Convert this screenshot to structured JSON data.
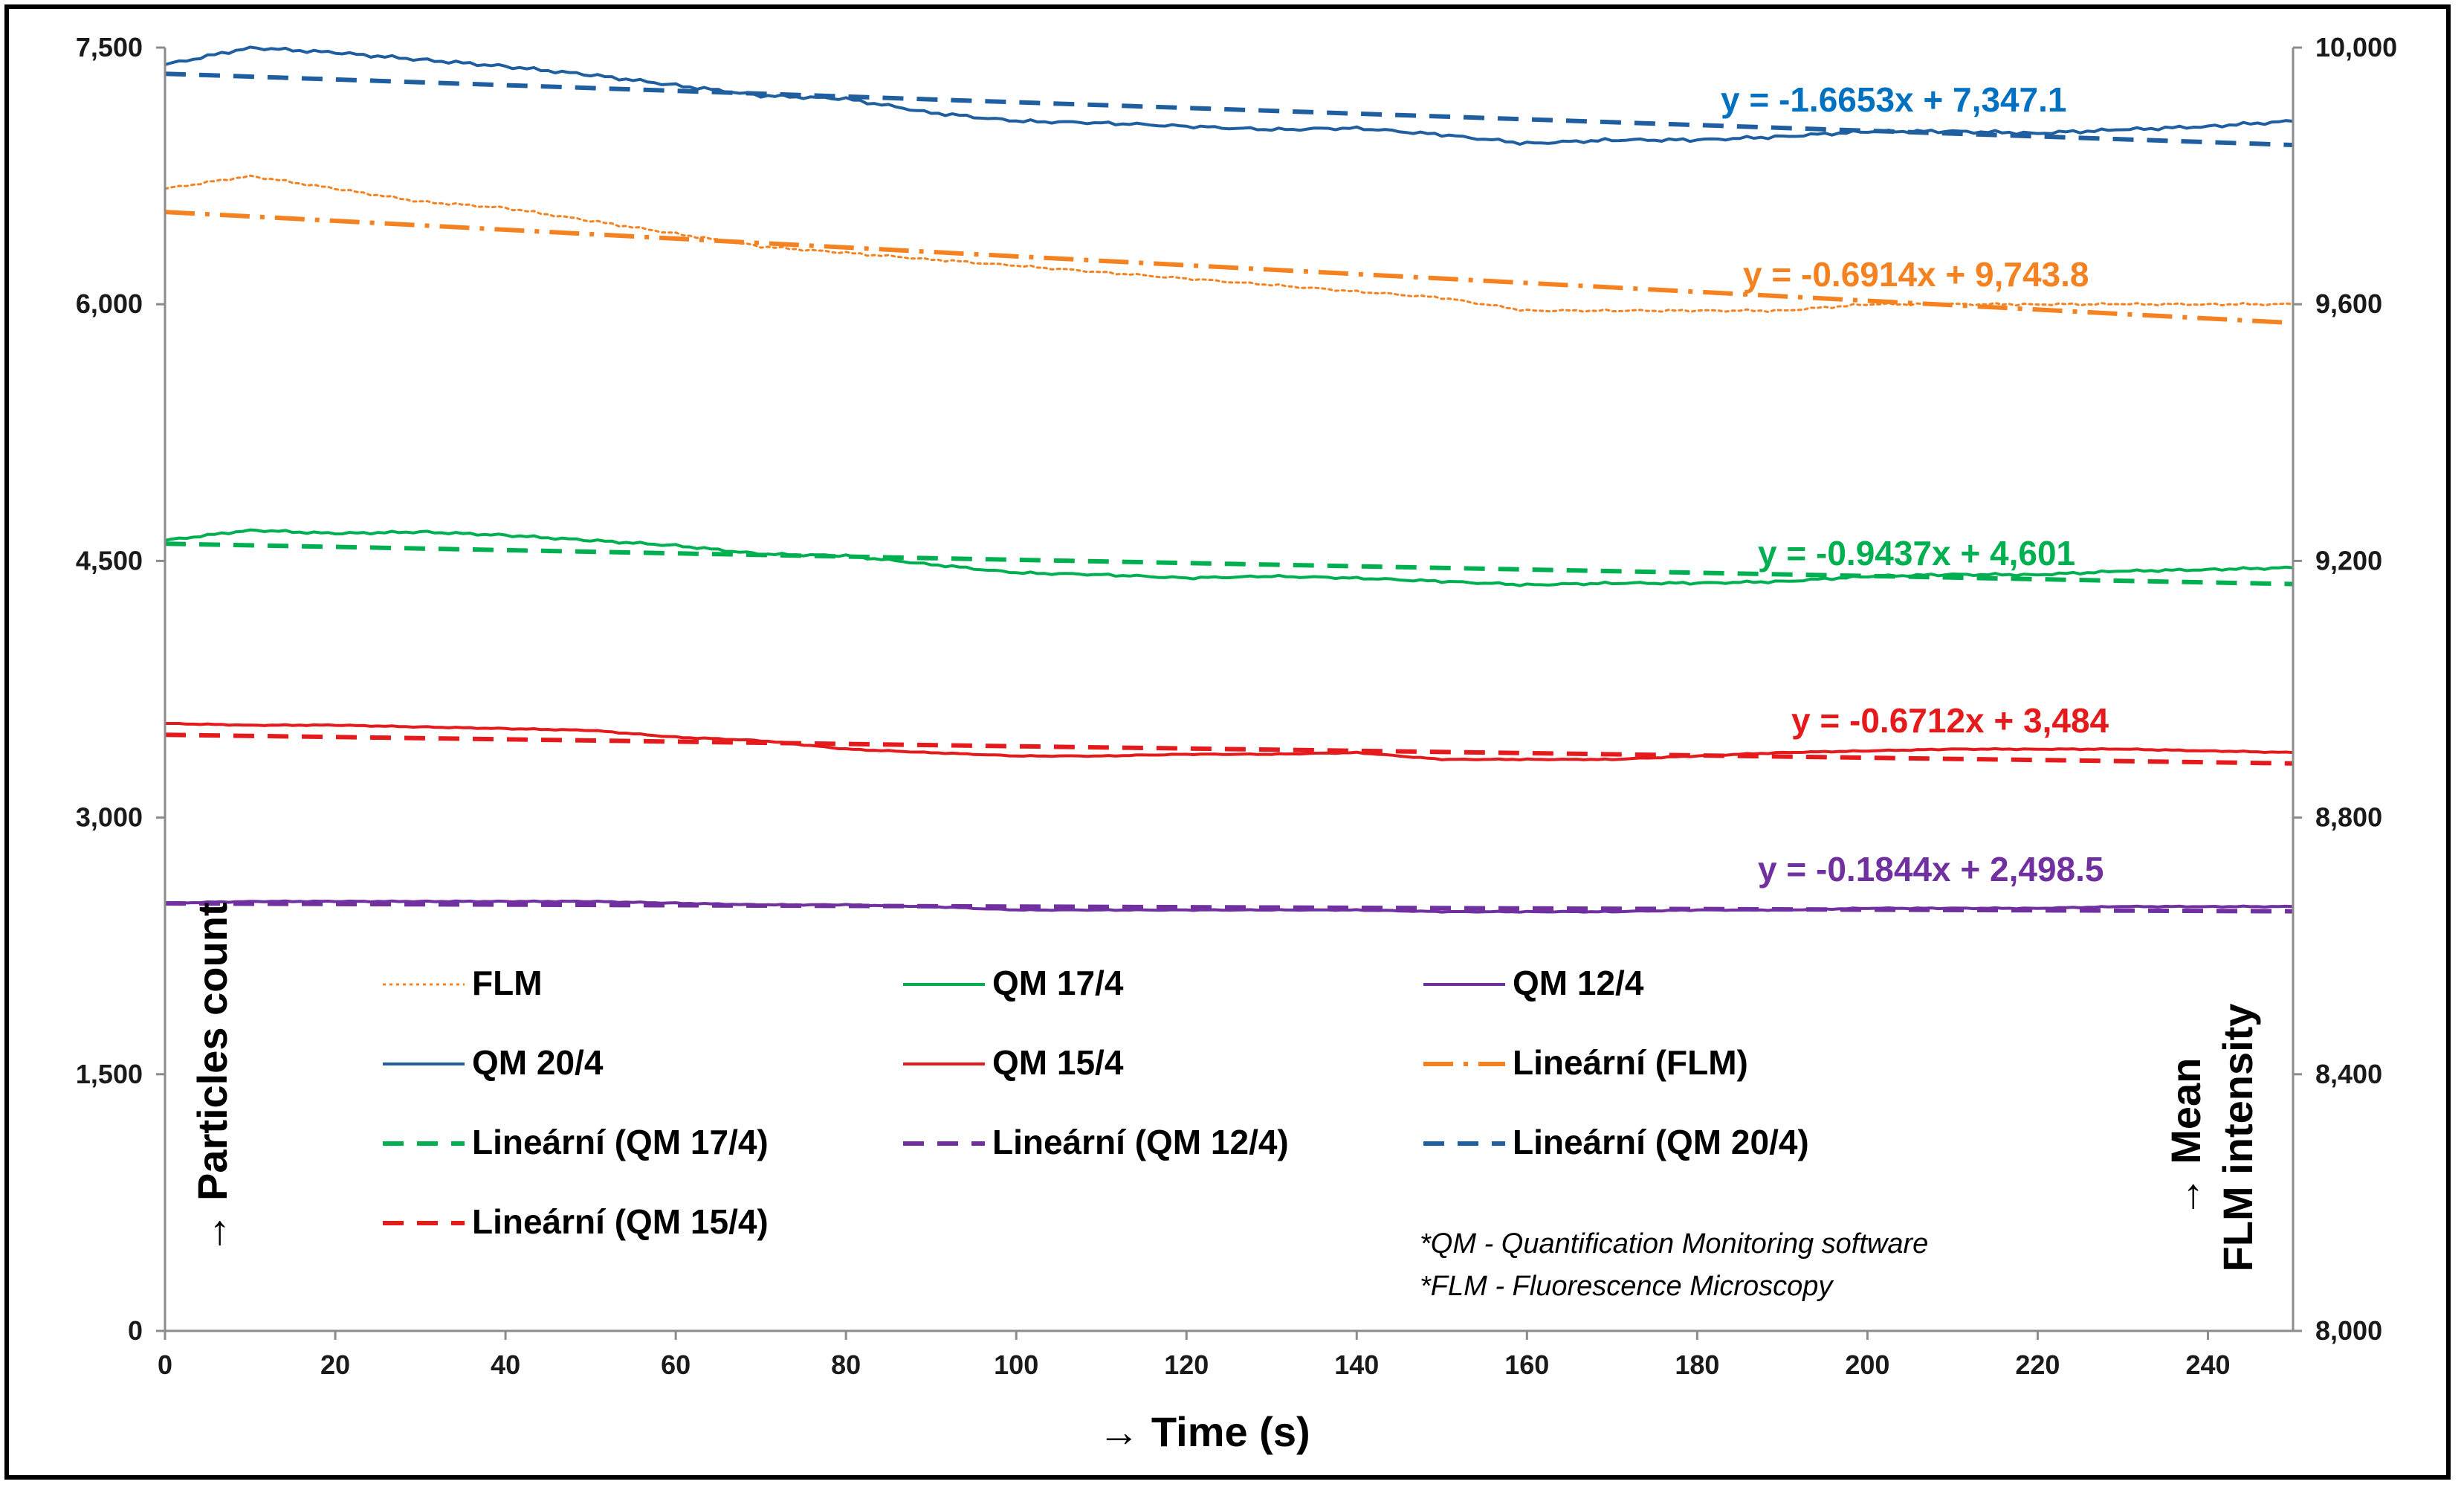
{
  "chart_data": {
    "type": "line",
    "x_label": "→ Time (s)",
    "y_left_label": "→ Particles count",
    "y_right_label_line1": "→ Mean",
    "y_right_label_line2": "FLM intensity",
    "x_range": [
      0,
      250
    ],
    "x_ticks": [
      "0",
      "20",
      "40",
      "60",
      "80",
      "100",
      "120",
      "140",
      "160",
      "180",
      "200",
      "220",
      "240"
    ],
    "x_tick_values": [
      0,
      20,
      40,
      60,
      80,
      100,
      120,
      140,
      160,
      180,
      200,
      220,
      240
    ],
    "y_left_range": [
      0,
      7500
    ],
    "y_left_ticks": [
      "0",
      "1,500",
      "3,000",
      "4,500",
      "6,000",
      "7,500"
    ],
    "y_left_tick_values": [
      0,
      1500,
      3000,
      4500,
      6000,
      7500
    ],
    "y_right_range": [
      8000,
      10000
    ],
    "y_right_ticks": [
      "8,000",
      "8,400",
      "8,800",
      "9,200",
      "9,600",
      "10,000"
    ],
    "y_right_tick_values": [
      8000,
      8400,
      8800,
      9200,
      9600,
      10000
    ],
    "colors": {
      "flm": "#f58220",
      "qm17": "#00b050",
      "qm12": "#7030a0",
      "qm20": "#1f5fa0",
      "qm15": "#e41a1c",
      "eq20": "#0070c0"
    },
    "series": [
      {
        "key": "qm20",
        "name": "QM 20/4",
        "axis": "left",
        "style": "solid",
        "x": [
          0,
          10,
          20,
          30,
          40,
          50,
          60,
          70,
          80,
          90,
          100,
          110,
          120,
          130,
          140,
          150,
          160,
          170,
          180,
          190,
          200,
          210,
          220,
          230,
          240,
          250
        ],
        "y": [
          7400,
          7500,
          7470,
          7430,
          7390,
          7340,
          7280,
          7220,
          7200,
          7120,
          7070,
          7060,
          7040,
          7020,
          7030,
          6990,
          6940,
          6960,
          6960,
          6980,
          7010,
          7010,
          7000,
          7020,
          7040,
          7070
        ]
      },
      {
        "key": "qm17",
        "name": "QM 17/4",
        "axis": "left",
        "style": "solid",
        "x": [
          0,
          10,
          20,
          30,
          40,
          50,
          60,
          70,
          80,
          90,
          100,
          110,
          120,
          130,
          140,
          150,
          160,
          170,
          180,
          190,
          200,
          210,
          220,
          230,
          240,
          250
        ],
        "y": [
          4620,
          4680,
          4660,
          4670,
          4650,
          4620,
          4590,
          4540,
          4530,
          4480,
          4430,
          4420,
          4400,
          4410,
          4400,
          4380,
          4360,
          4370,
          4370,
          4380,
          4410,
          4420,
          4420,
          4440,
          4450,
          4460
        ]
      },
      {
        "key": "qm15",
        "name": "QM 15/4",
        "axis": "left",
        "style": "solid",
        "x": [
          0,
          10,
          20,
          30,
          40,
          50,
          60,
          70,
          80,
          90,
          100,
          110,
          120,
          130,
          140,
          150,
          160,
          170,
          180,
          190,
          200,
          210,
          220,
          230,
          240,
          250
        ],
        "y": [
          3550,
          3540,
          3540,
          3530,
          3520,
          3510,
          3470,
          3450,
          3400,
          3380,
          3360,
          3360,
          3370,
          3370,
          3380,
          3340,
          3340,
          3340,
          3360,
          3380,
          3390,
          3400,
          3400,
          3400,
          3390,
          3380
        ]
      },
      {
        "key": "qm12",
        "name": "QM 12/4",
        "axis": "left",
        "style": "solid",
        "x": [
          0,
          10,
          20,
          30,
          40,
          50,
          60,
          70,
          80,
          90,
          100,
          110,
          120,
          130,
          140,
          150,
          160,
          170,
          180,
          190,
          200,
          210,
          220,
          230,
          240,
          250
        ],
        "y": [
          2500,
          2510,
          2510,
          2510,
          2510,
          2510,
          2500,
          2490,
          2490,
          2480,
          2460,
          2460,
          2460,
          2460,
          2460,
          2450,
          2450,
          2450,
          2460,
          2460,
          2470,
          2470,
          2470,
          2480,
          2480,
          2480
        ]
      },
      {
        "key": "flm",
        "name": "FLM",
        "axis": "right",
        "style": "dotted",
        "x": [
          0,
          10,
          20,
          30,
          40,
          50,
          60,
          70,
          80,
          90,
          100,
          110,
          120,
          130,
          140,
          150,
          160,
          170,
          180,
          190,
          200,
          210,
          220,
          230,
          240,
          250
        ],
        "y": [
          9780,
          9800,
          9780,
          9760,
          9750,
          9730,
          9710,
          9690,
          9680,
          9670,
          9660,
          9650,
          9640,
          9630,
          9620,
          9610,
          9590,
          9590,
          9590,
          9590,
          9600,
          9600,
          9600,
          9600,
          9600,
          9600
        ]
      },
      {
        "key": "lin_flm",
        "name": "Lineární (FLM)",
        "axis": "right",
        "style": "dashdot",
        "slope": -0.6914,
        "intercept": 9743.8
      },
      {
        "key": "lin_qm20",
        "name": "Lineární (QM 20/4)",
        "axis": "left",
        "style": "dashed",
        "slope": -1.6653,
        "intercept": 7347.1
      },
      {
        "key": "lin_qm17",
        "name": "Lineární (QM 17/4)",
        "axis": "left",
        "style": "dashed",
        "slope": -0.9437,
        "intercept": 4601
      },
      {
        "key": "lin_qm15",
        "name": "Lineární (QM 15/4)",
        "axis": "left",
        "style": "dashed",
        "slope": -0.6712,
        "intercept": 3484
      },
      {
        "key": "lin_qm12",
        "name": "Lineární (QM 12/4)",
        "axis": "left",
        "style": "dashed",
        "slope": -0.1844,
        "intercept": 2498.5
      }
    ],
    "trendline_equations": {
      "qm20": "y = -1.6653x + 7,347.1",
      "flm": "y = -0.6914x + 9,743.8",
      "qm17": "y = -0.9437x + 4,601",
      "qm15": "y = -0.6712x + 3,484",
      "qm12": "y = -0.1844x + 2,498.5"
    },
    "legend": [
      {
        "key": "flm",
        "label": "FLM"
      },
      {
        "key": "qm17",
        "label": "QM 17/4"
      },
      {
        "key": "qm12",
        "label": "QM 12/4"
      },
      {
        "key": "qm20",
        "label": "QM 20/4"
      },
      {
        "key": "qm15",
        "label": "QM 15/4"
      },
      {
        "key": "lin_flm",
        "label": "Lineární (FLM)"
      },
      {
        "key": "lin_qm17",
        "label": "Lineární (QM 17/4)"
      },
      {
        "key": "lin_qm12",
        "label": "Lineární (QM 12/4)"
      },
      {
        "key": "lin_qm20",
        "label": "Lineární (QM 20/4)"
      },
      {
        "key": "lin_qm15",
        "label": "Lineární (QM 15/4)"
      }
    ],
    "notes": [
      "*QM - Quantification Monitoring software",
      "*FLM - Fluorescence Microscopy"
    ]
  }
}
